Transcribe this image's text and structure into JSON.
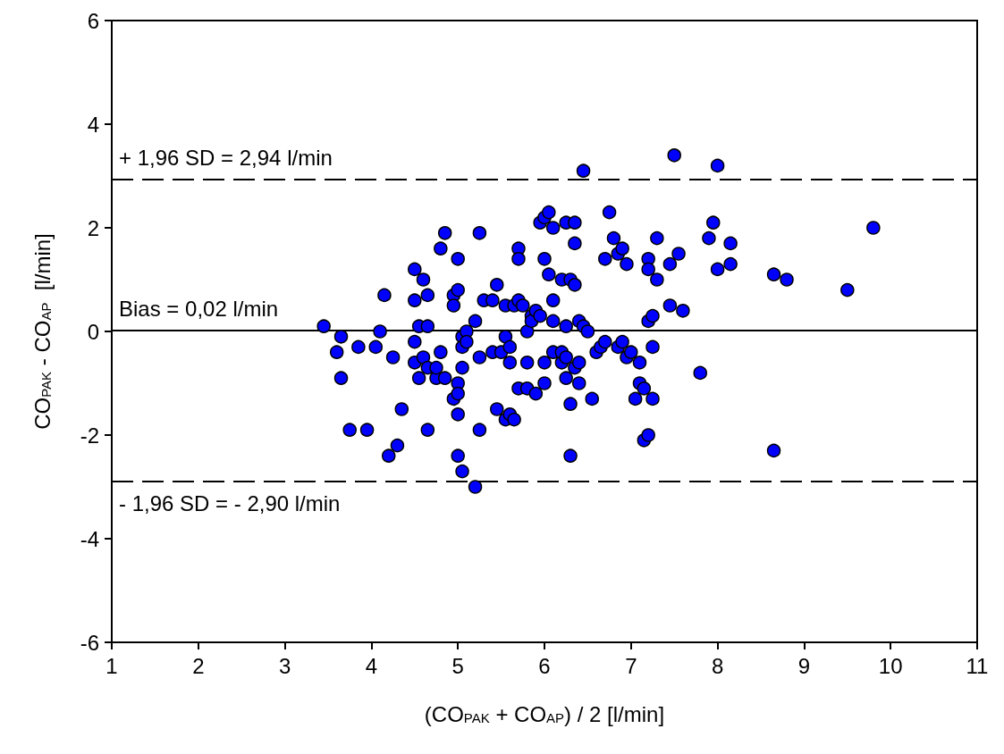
{
  "chart_data": {
    "type": "scatter",
    "xlabel": "(CO$_{PAK}$ + CO$_{AP}$) / 2 [l/min]",
    "ylabel": "CO$_{PAK}$ - CO$_{AP}$  [l/min]",
    "xlim": [
      1,
      11
    ],
    "xticks": [
      1,
      2,
      3,
      4,
      5,
      6,
      7,
      8,
      9,
      10,
      11
    ],
    "ylim": [
      -6,
      6
    ],
    "yticks": [
      -6,
      -4,
      -2,
      0,
      2,
      4,
      6
    ],
    "grid": false,
    "marker": "circle",
    "ref_lines": [
      {
        "axis": "y",
        "value": 2.94,
        "label": "+ 1,96 SD = 2,94 l/min",
        "line_style": "dashed",
        "color": "#000000"
      },
      {
        "axis": "y",
        "value": 0.02,
        "label": "Bias = 0,02 l/min",
        "line_style": "solid",
        "color": "#000000"
      },
      {
        "axis": "y",
        "value": -2.9,
        "label": "- 1,96 SD = - 2,90 l/min",
        "line_style": "dashed",
        "color": "#000000"
      }
    ],
    "series": [
      {
        "color": "#0000ff",
        "x": [
          3.45,
          3.6,
          3.65,
          3.65,
          3.75,
          3.85,
          3.95,
          4.05,
          4.1,
          4.15,
          4.2,
          4.25,
          4.3,
          4.35,
          4.5,
          4.5,
          4.5,
          4.5,
          4.55,
          4.55,
          4.6,
          4.6,
          4.65,
          4.65,
          4.65,
          4.65,
          4.75,
          4.75,
          4.8,
          4.8,
          4.85,
          4.85,
          4.95,
          4.95,
          4.95,
          5.0,
          5.0,
          5.0,
          5.0,
          5.0,
          5.0,
          5.05,
          5.05,
          5.05,
          5.05,
          5.1,
          5.1,
          5.2,
          5.2,
          5.25,
          5.25,
          5.25,
          5.3,
          5.4,
          5.4,
          5.45,
          5.45,
          5.5,
          5.55,
          5.55,
          5.55,
          5.6,
          5.6,
          5.6,
          5.65,
          5.65,
          5.7,
          5.7,
          5.7,
          5.7,
          5.75,
          5.8,
          5.8,
          5.8,
          5.85,
          5.85,
          5.9,
          5.9,
          5.95,
          5.95,
          6.0,
          6.0,
          6.0,
          6.0,
          6.05,
          6.05,
          6.1,
          6.1,
          6.1,
          6.1,
          6.2,
          6.2,
          6.2,
          6.25,
          6.25,
          6.25,
          6.25,
          6.3,
          6.3,
          6.3,
          6.35,
          6.35,
          6.35,
          6.35,
          6.4,
          6.4,
          6.4,
          6.45,
          6.45,
          6.5,
          6.55,
          6.6,
          6.65,
          6.7,
          6.7,
          6.75,
          6.8,
          6.85,
          6.85,
          6.9,
          6.9,
          6.95,
          6.95,
          7.0,
          7.05,
          7.1,
          7.1,
          7.15,
          7.15,
          7.2,
          7.2,
          7.2,
          7.2,
          7.25,
          7.25,
          7.25,
          7.3,
          7.3,
          7.45,
          7.45,
          7.5,
          7.55,
          7.6,
          7.8,
          7.9,
          7.95,
          8.0,
          8.0,
          8.15,
          8.15,
          8.65,
          8.65,
          8.8,
          9.5,
          9.8
        ],
        "values": [
          0.1,
          -0.4,
          -0.1,
          -0.9,
          -1.9,
          -0.3,
          -1.9,
          -0.3,
          0.0,
          0.7,
          -2.4,
          -0.5,
          -2.2,
          -1.5,
          1.2,
          0.6,
          -0.2,
          -0.6,
          -0.9,
          0.1,
          1.0,
          -0.5,
          0.7,
          0.1,
          -0.7,
          -1.9,
          -0.9,
          -0.7,
          1.6,
          -0.4,
          1.9,
          -0.9,
          0.7,
          0.5,
          -1.3,
          1.4,
          0.8,
          -1.0,
          -1.2,
          -1.6,
          -2.4,
          -0.1,
          -0.3,
          -0.7,
          -2.7,
          0.0,
          -0.2,
          0.2,
          -3.0,
          1.9,
          -1.9,
          -0.5,
          0.6,
          0.6,
          -0.4,
          0.9,
          -1.5,
          -0.4,
          -1.7,
          0.5,
          -0.1,
          -0.6,
          -1.6,
          -0.3,
          -1.7,
          0.5,
          1.6,
          1.4,
          0.6,
          -1.1,
          0.5,
          -1.1,
          -0.6,
          0.0,
          0.3,
          0.2,
          0.4,
          -1.2,
          2.1,
          0.3,
          1.4,
          -0.6,
          -1.0,
          2.2,
          2.3,
          1.1,
          2.0,
          0.6,
          0.2,
          -0.4,
          1.0,
          -0.6,
          -0.4,
          0.1,
          2.1,
          -0.5,
          -0.9,
          1.0,
          -1.4,
          -2.4,
          2.1,
          1.7,
          0.9,
          -0.7,
          0.2,
          -0.6,
          -1.0,
          3.1,
          0.1,
          0.0,
          -1.3,
          -0.4,
          -0.3,
          1.4,
          -0.2,
          2.3,
          1.8,
          1.5,
          -0.3,
          1.6,
          -0.2,
          1.3,
          -0.5,
          -0.4,
          -1.3,
          -0.6,
          -1.0,
          -1.1,
          -2.1,
          1.4,
          1.2,
          0.2,
          -2.0,
          0.3,
          -0.3,
          -1.3,
          1.8,
          1.0,
          1.3,
          0.5,
          3.4,
          1.5,
          0.4,
          -0.8,
          1.8,
          2.1,
          3.2,
          1.2,
          1.7,
          1.3,
          1.1,
          -2.3,
          1.0,
          0.8,
          2.0
        ]
      }
    ]
  }
}
